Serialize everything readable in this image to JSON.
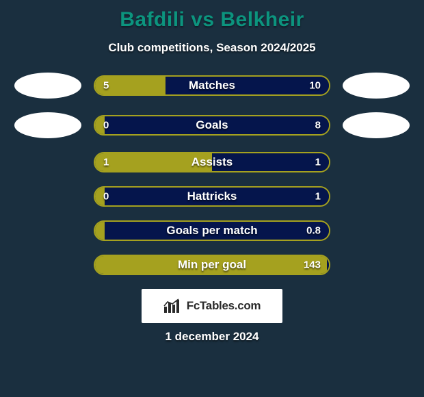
{
  "card": {
    "background_color": "#1a2f3f",
    "title": "Bafdili vs Belkheir",
    "title_color": "#0c947e",
    "subtitle": "Club competitions, Season 2024/2025",
    "date": "1 december 2024"
  },
  "colors": {
    "left_fill": "#a5a11f",
    "right_fill": "#05154c",
    "bar_border": "#a5a11f",
    "logo_bg": "#ffffff",
    "badge_bg": "#ffffff",
    "badge_text": "#2a2a2a",
    "text": "#ffffff"
  },
  "badge": {
    "text": "FcTables.com"
  },
  "stats": [
    {
      "label": "Matches",
      "left_value": "5",
      "right_value": "10",
      "left_pct": 30,
      "show_left_logo": true,
      "show_right_logo": true
    },
    {
      "label": "Goals",
      "left_value": "0",
      "right_value": "8",
      "left_pct": 4,
      "show_left_logo": true,
      "show_right_logo": true
    },
    {
      "label": "Assists",
      "left_value": "1",
      "right_value": "1",
      "left_pct": 50,
      "show_left_logo": false,
      "show_right_logo": false
    },
    {
      "label": "Hattricks",
      "left_value": "0",
      "right_value": "1",
      "left_pct": 4,
      "show_left_logo": false,
      "show_right_logo": false
    },
    {
      "label": "Goals per match",
      "left_value": "",
      "right_value": "0.8",
      "left_pct": 4,
      "show_left_logo": false,
      "show_right_logo": false
    },
    {
      "label": "Min per goal",
      "left_value": "",
      "right_value": "143",
      "left_pct": 99,
      "show_left_logo": false,
      "show_right_logo": false
    }
  ]
}
